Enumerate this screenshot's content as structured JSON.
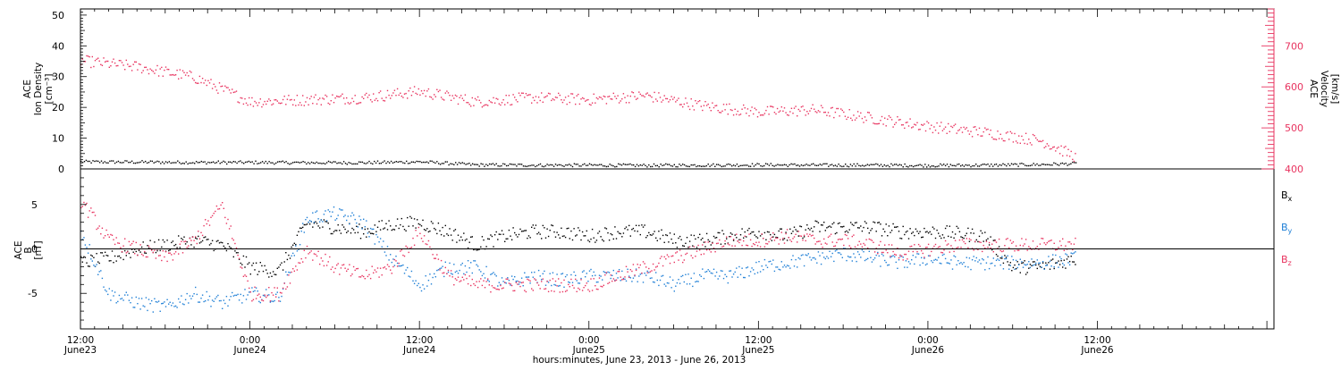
{
  "chart_data": [
    {
      "type": "scatter",
      "panel": "top",
      "ylabel_left_lines": [
        "ACE",
        "Ion Density",
        "[cm⁻³]"
      ],
      "ylabel_right_lines": [
        "ACE",
        "Velocity",
        "[km/s]"
      ],
      "ylim_left": [
        0,
        52
      ],
      "yticks_left": [
        0,
        10,
        20,
        30,
        40,
        50
      ],
      "ylim_right": [
        400,
        790
      ],
      "yticks_right": [
        400,
        500,
        600,
        700
      ],
      "x_hours_from_start": [
        0,
        4,
        8,
        12,
        16,
        20,
        24,
        28,
        32,
        36,
        40,
        44,
        48,
        52,
        56,
        60,
        64,
        68,
        70.5
      ],
      "series": [
        {
          "axis": "left",
          "color": "#000000",
          "values": [
            2.5,
            2.4,
            2.3,
            2.3,
            2.2,
            2.2,
            2.5,
            1.5,
            1.4,
            1.4,
            1.3,
            1.4,
            1.5,
            1.4,
            1.4,
            1.3,
            1.4,
            1.6,
            1.9
          ]
        },
        {
          "axis": "right",
          "color": "#e8335f",
          "values": [
            665,
            650,
            625,
            565,
            570,
            575,
            590,
            565,
            575,
            570,
            580,
            555,
            540,
            545,
            525,
            505,
            490,
            470,
            430
          ]
        }
      ]
    },
    {
      "type": "scatter",
      "panel": "bottom",
      "ylabel_lines": [
        "ACE",
        "B",
        "[nT]"
      ],
      "ylim": [
        -9,
        9
      ],
      "yticks": [
        -5,
        0,
        5
      ],
      "x_hours_from_start": [
        0,
        2,
        4,
        6,
        8,
        10,
        12,
        14,
        16,
        18,
        20,
        22,
        24,
        26,
        28,
        30,
        32,
        34,
        36,
        38,
        40,
        42,
        44,
        46,
        48,
        50,
        52,
        54,
        56,
        58,
        60,
        62,
        64,
        66,
        68,
        70.5
      ],
      "series": [
        {
          "name": "B",
          "subscript": "x",
          "color": "#000000",
          "values": [
            -1.5,
            -1,
            0,
            0.5,
            1,
            0.5,
            -2,
            -2.5,
            3,
            2.5,
            2,
            2.8,
            3,
            2,
            0.5,
            1.5,
            2,
            2,
            1.5,
            2,
            2,
            1,
            1,
            1.5,
            2,
            1.5,
            2.5,
            2.5,
            2.5,
            2,
            2,
            1.8,
            1.5,
            -2,
            -2,
            -1
          ]
        },
        {
          "name": "B",
          "subscript": "y",
          "color": "#1f7fd6",
          "values": [
            2,
            -5,
            -6,
            -6.5,
            -5,
            -6,
            -5,
            -5.5,
            3.5,
            4,
            3,
            -1,
            -4,
            -2,
            -2,
            -4,
            -3,
            -3.5,
            -3,
            -3,
            -3,
            -4,
            -3,
            -3,
            -2,
            -1.5,
            -1,
            -0.5,
            -1,
            -1.5,
            -1,
            -1.5,
            -1.5,
            -1.5,
            -1.5,
            -1
          ]
        },
        {
          "name": "B",
          "subscript": "z",
          "color": "#e8335f",
          "values": [
            5.5,
            1,
            0,
            -1,
            1,
            5,
            -5,
            -5,
            0,
            -2,
            -3,
            -2,
            2,
            -3,
            -4,
            -4,
            -4,
            -4,
            -4,
            -3,
            -2,
            -1,
            0,
            1,
            1,
            1.5,
            1,
            1,
            0.5,
            -0.5,
            0,
            0.5,
            0.5,
            0.5,
            0.5,
            0.5
          ]
        }
      ]
    },
    {
      "type": "axis",
      "panel": "shared-x",
      "xlim_hours_from_start": [
        0,
        84.5
      ],
      "major_ticks": [
        {
          "hours": 0,
          "time": "12:00",
          "date": "June23"
        },
        {
          "hours": 12,
          "time": "0:00",
          "date": "June24"
        },
        {
          "hours": 24,
          "time": "12:00",
          "date": "June24"
        },
        {
          "hours": 36,
          "time": "0:00",
          "date": "June25"
        },
        {
          "hours": 48,
          "time": "12:00",
          "date": "June25"
        },
        {
          "hours": 60,
          "time": "0:00",
          "date": "June26"
        },
        {
          "hours": 72,
          "time": "12:00",
          "date": "June26"
        }
      ],
      "xlabel": "hours:minutes, June 23, 2013 - June 26, 2013"
    }
  ]
}
